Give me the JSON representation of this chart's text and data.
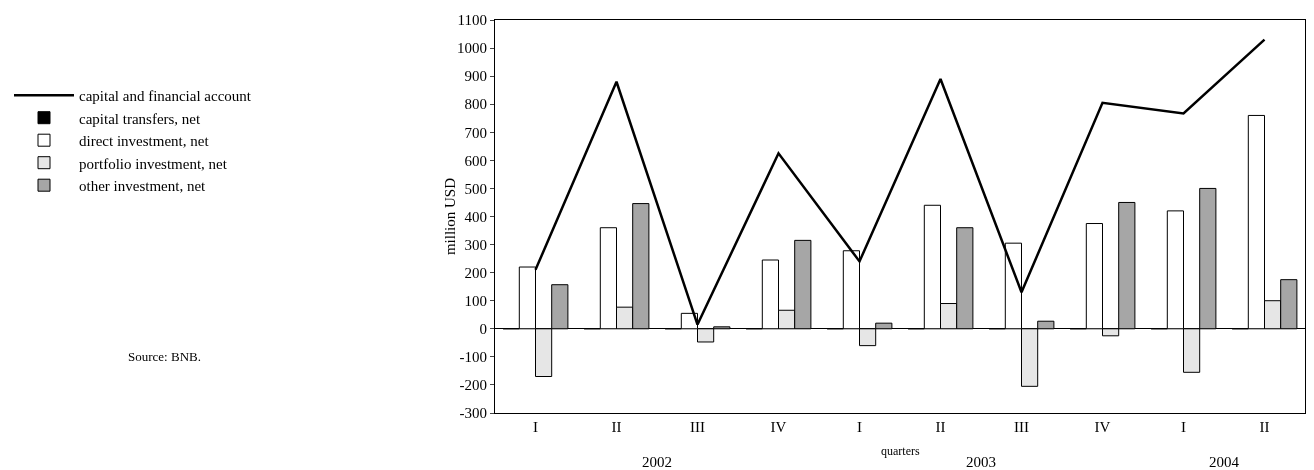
{
  "chart_data": {
    "type": "bar",
    "ylabel": "million USD",
    "xlabel": "quarters",
    "categories": [
      "I",
      "II",
      "III",
      "IV",
      "I",
      "II",
      "III",
      "IV",
      "I",
      "II"
    ],
    "series": [
      {
        "name": "capital and financial account",
        "type": "line",
        "color": "#000000",
        "values": [
          210,
          880,
          15,
          625,
          240,
          890,
          130,
          805,
          767,
          1030
        ]
      },
      {
        "name": "capital transfers, net",
        "color": "#000000",
        "values": [
          0,
          0,
          0,
          0,
          0,
          0,
          0,
          0,
          0,
          0
        ]
      },
      {
        "name": "direct investment, net",
        "color": "#ffffff",
        "values": [
          220,
          360,
          55,
          245,
          278,
          440,
          305,
          375,
          420,
          760
        ]
      },
      {
        "name": "portfolio investment, net",
        "color": "#e6e6e6",
        "values": [
          -170,
          77,
          -47,
          66,
          -60,
          90,
          -205,
          -25,
          -155,
          100
        ]
      },
      {
        "name": "other investment, net",
        "color": "#a6a6a6",
        "values": [
          157,
          446,
          7,
          315,
          20,
          360,
          27,
          450,
          500,
          175
        ]
      }
    ],
    "ylim": [
      -300,
      1100
    ],
    "yticks": [
      -300,
      -200,
      -100,
      0,
      100,
      200,
      300,
      400,
      500,
      600,
      700,
      800,
      900,
      1000,
      1100
    ],
    "legend": "left",
    "marker": "none",
    "line_style": "solid",
    "annotations": [
      "2002",
      "2003",
      "2004",
      "Source: BNB."
    ]
  }
}
